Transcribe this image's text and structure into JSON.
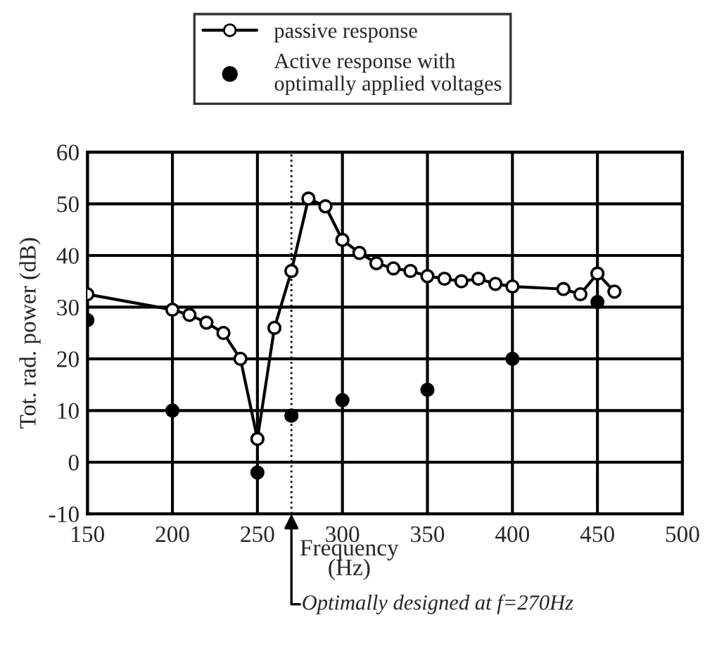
{
  "chart_data": {
    "type": "line",
    "xlabel": "Frequency\n(Hz)",
    "ylabel": "Tot. rad. power (dB)",
    "xlim": [
      150,
      500
    ],
    "xticks": [
      150,
      200,
      250,
      300,
      350,
      400,
      450,
      500
    ],
    "ylim": [
      -10,
      60
    ],
    "yticks": [
      -10,
      0,
      10,
      20,
      30,
      40,
      50,
      60
    ],
    "grid": true,
    "legend": "top",
    "marker": "circle",
    "series": [
      {
        "name": "passive response",
        "color": "#000000",
        "line_style": "solid",
        "x": [
          150,
          200,
          210,
          220,
          230,
          240,
          250,
          260,
          270,
          280,
          290,
          300,
          310,
          320,
          330,
          340,
          350,
          360,
          370,
          380,
          390,
          400,
          430,
          440,
          450,
          460
        ],
        "values": [
          32.5,
          29.5,
          28.5,
          27,
          25,
          20,
          4.5,
          26,
          37,
          51,
          49.5,
          43,
          40.5,
          38.5,
          37.5,
          37,
          36,
          35.5,
          35,
          35.5,
          34.5,
          34,
          33.5,
          32.5,
          36.5,
          33
        ]
      },
      {
        "name": "Active response with\noptimally applied voltages",
        "type": "scatter",
        "color": "#000000",
        "x": [
          150,
          200,
          250,
          270,
          300,
          350,
          400,
          450
        ],
        "values": [
          27.5,
          10,
          -2,
          9,
          12,
          14,
          20,
          31
        ]
      }
    ],
    "ref_lines": [
      {
        "axis": "x",
        "value": 270,
        "label": "Optimally designed at f=270Hz",
        "line_style": "dotted",
        "color": "#000000"
      }
    ]
  }
}
